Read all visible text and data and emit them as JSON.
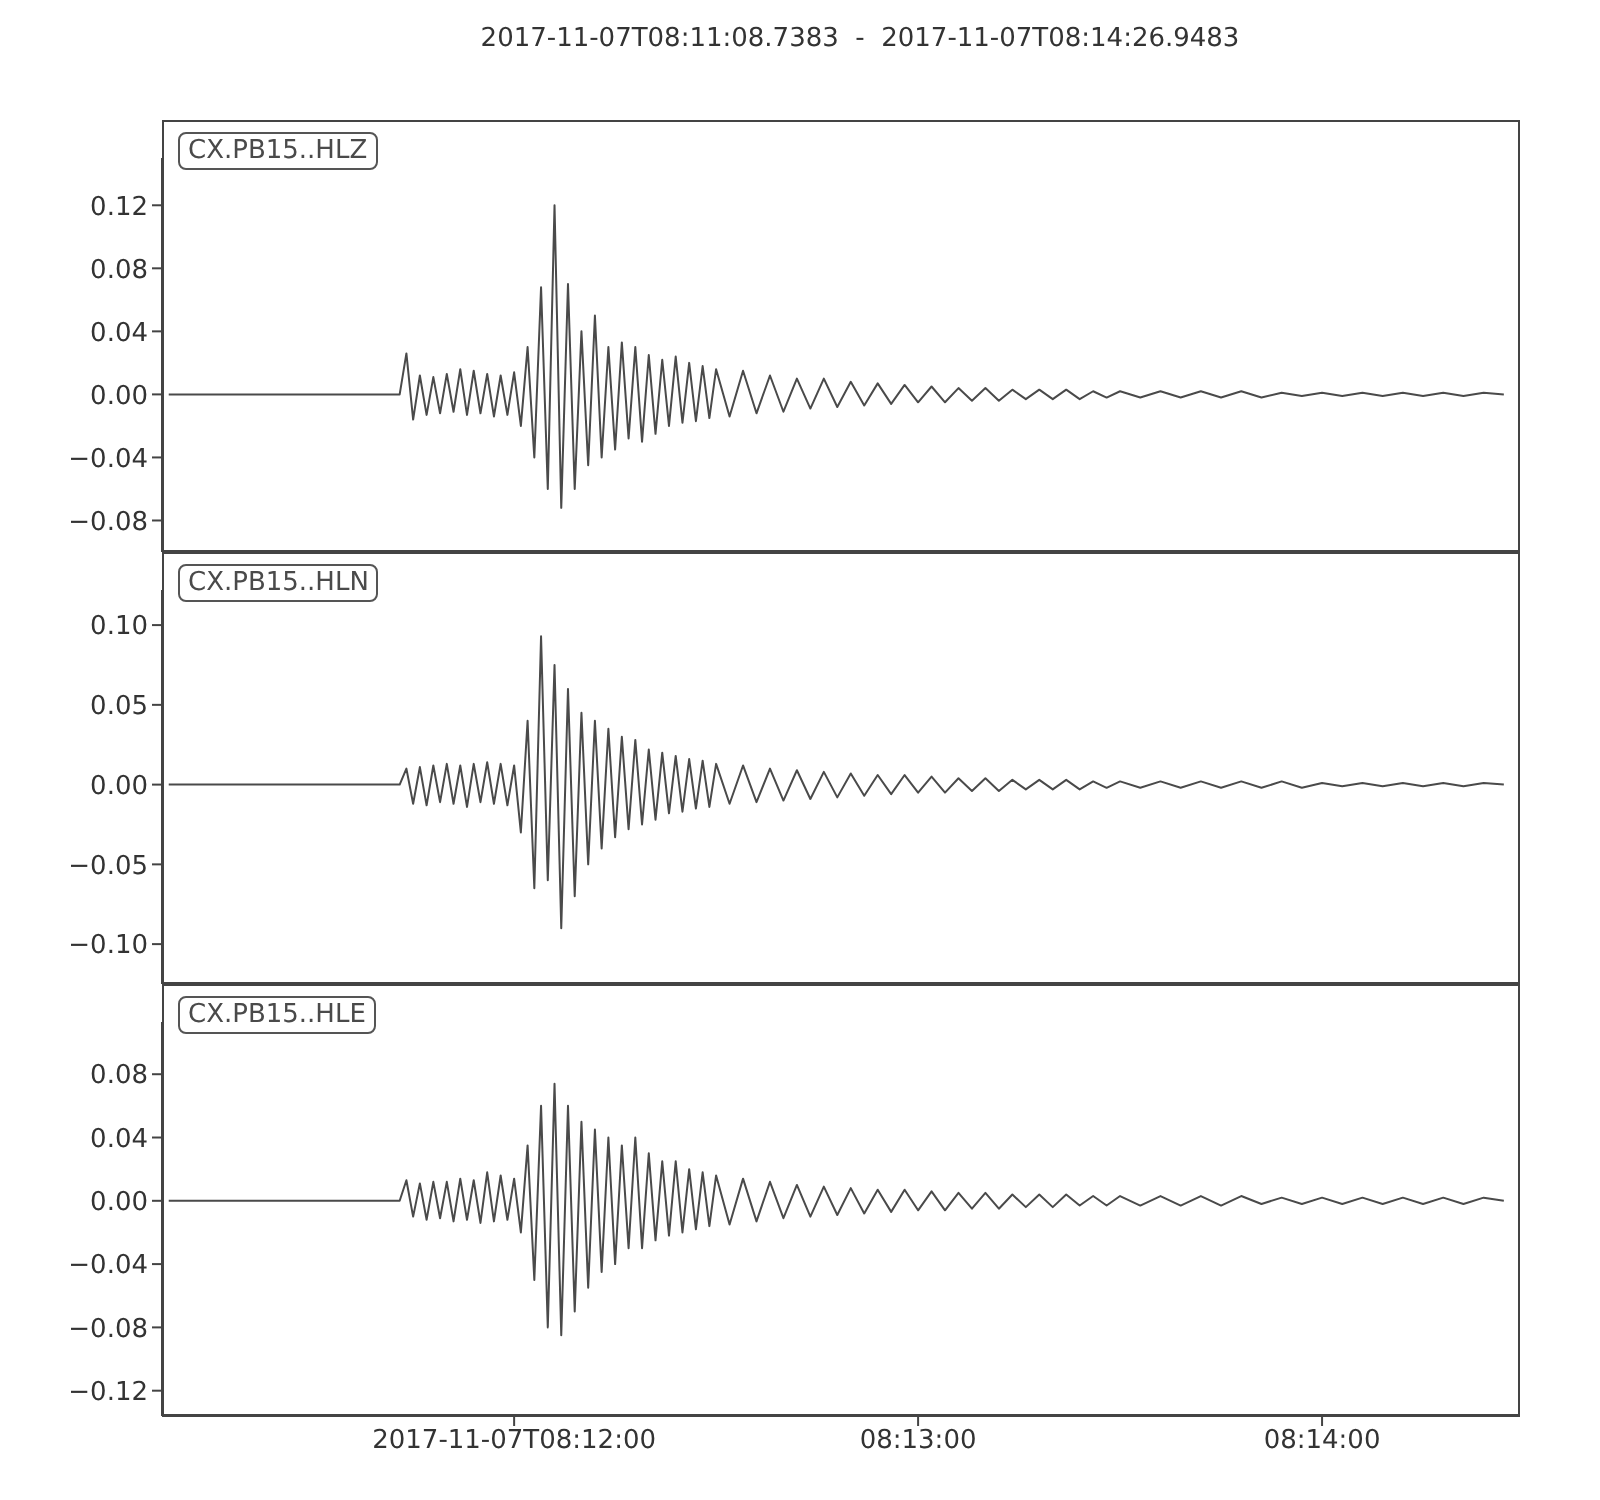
{
  "chart_data": [
    {
      "type": "line",
      "title": "2017-11-07T08:11:08.7383  -  2017-11-07T08:14:26.9483",
      "legend": "top left",
      "tick_labels": "y",
      "x": [
        "2017-11-07T08:11:08.7",
        "2017-11-07T08:11:43",
        "2017-11-07T08:11:44",
        "2017-11-07T08:11:45",
        "2017-11-07T08:11:46",
        "2017-11-07T08:11:47",
        "2017-11-07T08:11:48",
        "2017-11-07T08:11:49",
        "2017-11-07T08:11:50",
        "2017-11-07T08:11:51",
        "2017-11-07T08:11:52",
        "2017-11-07T08:11:53",
        "2017-11-07T08:11:54",
        "2017-11-07T08:11:55",
        "2017-11-07T08:11:56",
        "2017-11-07T08:11:57",
        "2017-11-07T08:11:58",
        "2017-11-07T08:11:59",
        "2017-11-07T08:12:00",
        "2017-11-07T08:12:01",
        "2017-11-07T08:12:02",
        "2017-11-07T08:12:03",
        "2017-11-07T08:12:04",
        "2017-11-07T08:12:05",
        "2017-11-07T08:12:06",
        "2017-11-07T08:12:07",
        "2017-11-07T08:12:08",
        "2017-11-07T08:12:09",
        "2017-11-07T08:12:10",
        "2017-11-07T08:12:11",
        "2017-11-07T08:12:12",
        "2017-11-07T08:12:13",
        "2017-11-07T08:12:14",
        "2017-11-07T08:12:15",
        "2017-11-07T08:12:16",
        "2017-11-07T08:12:17",
        "2017-11-07T08:12:18",
        "2017-11-07T08:12:19",
        "2017-11-07T08:12:20",
        "2017-11-07T08:12:21",
        "2017-11-07T08:12:22",
        "2017-11-07T08:12:23",
        "2017-11-07T08:12:24",
        "2017-11-07T08:12:25",
        "2017-11-07T08:12:26",
        "2017-11-07T08:12:27",
        "2017-11-07T08:12:28",
        "2017-11-07T08:12:29",
        "2017-11-07T08:12:30",
        "2017-11-07T08:12:32",
        "2017-11-07T08:12:34",
        "2017-11-07T08:12:36",
        "2017-11-07T08:12:38",
        "2017-11-07T08:12:40",
        "2017-11-07T08:12:42",
        "2017-11-07T08:12:44",
        "2017-11-07T08:12:46",
        "2017-11-07T08:12:48",
        "2017-11-07T08:12:50",
        "2017-11-07T08:12:52",
        "2017-11-07T08:12:54",
        "2017-11-07T08:12:56",
        "2017-11-07T08:12:58",
        "2017-11-07T08:13:00",
        "2017-11-07T08:13:02",
        "2017-11-07T08:13:04",
        "2017-11-07T08:13:06",
        "2017-11-07T08:13:08",
        "2017-11-07T08:13:10",
        "2017-11-07T08:13:12",
        "2017-11-07T08:13:14",
        "2017-11-07T08:13:16",
        "2017-11-07T08:13:18",
        "2017-11-07T08:13:20",
        "2017-11-07T08:13:22",
        "2017-11-07T08:13:24",
        "2017-11-07T08:13:26",
        "2017-11-07T08:13:28",
        "2017-11-07T08:13:30",
        "2017-11-07T08:13:33",
        "2017-11-07T08:13:36",
        "2017-11-07T08:13:39",
        "2017-11-07T08:13:42",
        "2017-11-07T08:13:45",
        "2017-11-07T08:13:48",
        "2017-11-07T08:13:51",
        "2017-11-07T08:13:54",
        "2017-11-07T08:13:57",
        "2017-11-07T08:14:00",
        "2017-11-07T08:14:03",
        "2017-11-07T08:14:06",
        "2017-11-07T08:14:09",
        "2017-11-07T08:14:12",
        "2017-11-07T08:14:15",
        "2017-11-07T08:14:18",
        "2017-11-07T08:14:21",
        "2017-11-07T08:14:24",
        "2017-11-07T08:14:27"
      ],
      "xlim": [
        "2017-11-07T08:11:07.7",
        "2017-11-07T08:14:29.4"
      ],
      "xticks": [
        {
          "value": "2017-11-07T08:12:00",
          "label": null
        },
        {
          "value": "2017-11-07T08:13:00",
          "label": null
        },
        {
          "value": "2017-11-07T08:14:00",
          "label": null
        }
      ],
      "ylim": [
        -0.1,
        0.15
      ],
      "yticks": [
        {
          "value": -0.08,
          "label": "−0.08"
        },
        {
          "value": -0.04,
          "label": "−0.04"
        },
        {
          "value": 0,
          "label": "0.00"
        },
        {
          "value": 0.04,
          "label": "0.04"
        },
        {
          "value": 0.08,
          "label": "0.08"
        },
        {
          "value": 0.12,
          "label": "0.12"
        }
      ],
      "series": [
        {
          "name": "CX.PB15..HLZ",
          "color": "#4a4a4a",
          "values": [
            0,
            0,
            0.026,
            -0.016,
            0.012,
            -0.013,
            0.011,
            -0.012,
            0.013,
            -0.011,
            0.016,
            -0.013,
            0.015,
            -0.012,
            0.013,
            -0.014,
            0.012,
            -0.013,
            0.014,
            -0.02,
            0.03,
            -0.04,
            0.068,
            -0.06,
            0.12,
            -0.072,
            0.07,
            -0.06,
            0.04,
            -0.045,
            0.05,
            -0.04,
            0.03,
            -0.035,
            0.033,
            -0.028,
            0.03,
            -0.03,
            0.025,
            -0.025,
            0.022,
            -0.02,
            0.024,
            -0.018,
            0.02,
            -0.017,
            0.018,
            -0.015,
            0.016,
            -0.014,
            0.015,
            -0.012,
            0.012,
            -0.011,
            0.01,
            -0.009,
            0.01,
            -0.008,
            0.008,
            -0.007,
            0.007,
            -0.006,
            0.006,
            -0.005,
            0.005,
            -0.005,
            0.004,
            -0.004,
            0.004,
            -0.004,
            0.003,
            -0.003,
            0.003,
            -0.003,
            0.003,
            -0.003,
            0.002,
            -0.002,
            0.002,
            -0.002,
            0.002,
            -0.002,
            0.002,
            -0.002,
            0.002,
            -0.002,
            0.001,
            -0.001,
            0.001,
            -0.001,
            0.001,
            -0.001,
            0.001,
            -0.001,
            0.001,
            -0.001,
            0.001,
            0
          ]
        }
      ]
    },
    {
      "type": "line",
      "legend": "top left",
      "tick_labels": "y",
      "x": [
        "2017-11-07T08:11:08.7",
        "2017-11-07T08:11:43",
        "2017-11-07T08:11:44",
        "2017-11-07T08:11:45",
        "2017-11-07T08:11:46",
        "2017-11-07T08:11:47",
        "2017-11-07T08:11:48",
        "2017-11-07T08:11:49",
        "2017-11-07T08:11:50",
        "2017-11-07T08:11:51",
        "2017-11-07T08:11:52",
        "2017-11-07T08:11:53",
        "2017-11-07T08:11:54",
        "2017-11-07T08:11:55",
        "2017-11-07T08:11:56",
        "2017-11-07T08:11:57",
        "2017-11-07T08:11:58",
        "2017-11-07T08:11:59",
        "2017-11-07T08:12:00",
        "2017-11-07T08:12:01",
        "2017-11-07T08:12:02",
        "2017-11-07T08:12:03",
        "2017-11-07T08:12:04",
        "2017-11-07T08:12:05",
        "2017-11-07T08:12:06",
        "2017-11-07T08:12:07",
        "2017-11-07T08:12:08",
        "2017-11-07T08:12:09",
        "2017-11-07T08:12:10",
        "2017-11-07T08:12:11",
        "2017-11-07T08:12:12",
        "2017-11-07T08:12:13",
        "2017-11-07T08:12:14",
        "2017-11-07T08:12:15",
        "2017-11-07T08:12:16",
        "2017-11-07T08:12:17",
        "2017-11-07T08:12:18",
        "2017-11-07T08:12:19",
        "2017-11-07T08:12:20",
        "2017-11-07T08:12:21",
        "2017-11-07T08:12:22",
        "2017-11-07T08:12:23",
        "2017-11-07T08:12:24",
        "2017-11-07T08:12:25",
        "2017-11-07T08:12:26",
        "2017-11-07T08:12:27",
        "2017-11-07T08:12:28",
        "2017-11-07T08:12:29",
        "2017-11-07T08:12:30",
        "2017-11-07T08:12:32",
        "2017-11-07T08:12:34",
        "2017-11-07T08:12:36",
        "2017-11-07T08:12:38",
        "2017-11-07T08:12:40",
        "2017-11-07T08:12:42",
        "2017-11-07T08:12:44",
        "2017-11-07T08:12:46",
        "2017-11-07T08:12:48",
        "2017-11-07T08:12:50",
        "2017-11-07T08:12:52",
        "2017-11-07T08:12:54",
        "2017-11-07T08:12:56",
        "2017-11-07T08:12:58",
        "2017-11-07T08:13:00",
        "2017-11-07T08:13:02",
        "2017-11-07T08:13:04",
        "2017-11-07T08:13:06",
        "2017-11-07T08:13:08",
        "2017-11-07T08:13:10",
        "2017-11-07T08:13:12",
        "2017-11-07T08:13:14",
        "2017-11-07T08:13:16",
        "2017-11-07T08:13:18",
        "2017-11-07T08:13:20",
        "2017-11-07T08:13:22",
        "2017-11-07T08:13:24",
        "2017-11-07T08:13:26",
        "2017-11-07T08:13:28",
        "2017-11-07T08:13:30",
        "2017-11-07T08:13:33",
        "2017-11-07T08:13:36",
        "2017-11-07T08:13:39",
        "2017-11-07T08:13:42",
        "2017-11-07T08:13:45",
        "2017-11-07T08:13:48",
        "2017-11-07T08:13:51",
        "2017-11-07T08:13:54",
        "2017-11-07T08:13:57",
        "2017-11-07T08:14:00",
        "2017-11-07T08:14:03",
        "2017-11-07T08:14:06",
        "2017-11-07T08:14:09",
        "2017-11-07T08:14:12",
        "2017-11-07T08:14:15",
        "2017-11-07T08:14:18",
        "2017-11-07T08:14:21",
        "2017-11-07T08:14:24",
        "2017-11-07T08:14:27"
      ],
      "xlim": [
        "2017-11-07T08:11:07.7",
        "2017-11-07T08:14:29.4"
      ],
      "xticks": [
        {
          "value": "2017-11-07T08:12:00",
          "label": null
        },
        {
          "value": "2017-11-07T08:13:00",
          "label": null
        },
        {
          "value": "2017-11-07T08:14:00",
          "label": null
        }
      ],
      "ylim": [
        -0.125,
        0.122
      ],
      "yticks": [
        {
          "value": -0.1,
          "label": "−0.10"
        },
        {
          "value": -0.05,
          "label": "−0.05"
        },
        {
          "value": 0,
          "label": "0.00"
        },
        {
          "value": 0.05,
          "label": "0.05"
        },
        {
          "value": 0.1,
          "label": "0.10"
        }
      ],
      "series": [
        {
          "name": "CX.PB15..HLN",
          "color": "#4a4a4a",
          "values": [
            0,
            0,
            0.01,
            -0.012,
            0.011,
            -0.013,
            0.012,
            -0.011,
            0.013,
            -0.012,
            0.012,
            -0.014,
            0.013,
            -0.011,
            0.014,
            -0.012,
            0.013,
            -0.013,
            0.012,
            -0.03,
            0.04,
            -0.065,
            0.093,
            -0.06,
            0.075,
            -0.09,
            0.06,
            -0.07,
            0.045,
            -0.05,
            0.04,
            -0.04,
            0.035,
            -0.033,
            0.03,
            -0.028,
            0.028,
            -0.025,
            0.022,
            -0.022,
            0.02,
            -0.018,
            0.018,
            -0.017,
            0.016,
            -0.015,
            0.015,
            -0.014,
            0.013,
            -0.012,
            0.012,
            -0.011,
            0.01,
            -0.01,
            0.009,
            -0.009,
            0.008,
            -0.008,
            0.007,
            -0.007,
            0.006,
            -0.006,
            0.006,
            -0.005,
            0.005,
            -0.005,
            0.004,
            -0.004,
            0.004,
            -0.004,
            0.003,
            -0.003,
            0.003,
            -0.003,
            0.003,
            -0.003,
            0.002,
            -0.002,
            0.002,
            -0.002,
            0.002,
            -0.002,
            0.002,
            -0.002,
            0.002,
            -0.002,
            0.002,
            -0.002,
            0.001,
            -0.001,
            0.001,
            -0.001,
            0.001,
            -0.001,
            0.001,
            -0.001,
            0.001,
            0
          ]
        }
      ]
    },
    {
      "type": "line",
      "legend": "top left",
      "x": [
        "2017-11-07T08:11:08.7",
        "2017-11-07T08:11:43",
        "2017-11-07T08:11:44",
        "2017-11-07T08:11:45",
        "2017-11-07T08:11:46",
        "2017-11-07T08:11:47",
        "2017-11-07T08:11:48",
        "2017-11-07T08:11:49",
        "2017-11-07T08:11:50",
        "2017-11-07T08:11:51",
        "2017-11-07T08:11:52",
        "2017-11-07T08:11:53",
        "2017-11-07T08:11:54",
        "2017-11-07T08:11:55",
        "2017-11-07T08:11:56",
        "2017-11-07T08:11:57",
        "2017-11-07T08:11:58",
        "2017-11-07T08:11:59",
        "2017-11-07T08:12:00",
        "2017-11-07T08:12:01",
        "2017-11-07T08:12:02",
        "2017-11-07T08:12:03",
        "2017-11-07T08:12:04",
        "2017-11-07T08:12:05",
        "2017-11-07T08:12:06",
        "2017-11-07T08:12:07",
        "2017-11-07T08:12:08",
        "2017-11-07T08:12:09",
        "2017-11-07T08:12:10",
        "2017-11-07T08:12:11",
        "2017-11-07T08:12:12",
        "2017-11-07T08:12:13",
        "2017-11-07T08:12:14",
        "2017-11-07T08:12:15",
        "2017-11-07T08:12:16",
        "2017-11-07T08:12:17",
        "2017-11-07T08:12:18",
        "2017-11-07T08:12:19",
        "2017-11-07T08:12:20",
        "2017-11-07T08:12:21",
        "2017-11-07T08:12:22",
        "2017-11-07T08:12:23",
        "2017-11-07T08:12:24",
        "2017-11-07T08:12:25",
        "2017-11-07T08:12:26",
        "2017-11-07T08:12:27",
        "2017-11-07T08:12:28",
        "2017-11-07T08:12:29",
        "2017-11-07T08:12:30",
        "2017-11-07T08:12:32",
        "2017-11-07T08:12:34",
        "2017-11-07T08:12:36",
        "2017-11-07T08:12:38",
        "2017-11-07T08:12:40",
        "2017-11-07T08:12:42",
        "2017-11-07T08:12:44",
        "2017-11-07T08:12:46",
        "2017-11-07T08:12:48",
        "2017-11-07T08:12:50",
        "2017-11-07T08:12:52",
        "2017-11-07T08:12:54",
        "2017-11-07T08:12:56",
        "2017-11-07T08:12:58",
        "2017-11-07T08:13:00",
        "2017-11-07T08:13:02",
        "2017-11-07T08:13:04",
        "2017-11-07T08:13:06",
        "2017-11-07T08:13:08",
        "2017-11-07T08:13:10",
        "2017-11-07T08:13:12",
        "2017-11-07T08:13:14",
        "2017-11-07T08:13:16",
        "2017-11-07T08:13:18",
        "2017-11-07T08:13:20",
        "2017-11-07T08:13:22",
        "2017-11-07T08:13:24",
        "2017-11-07T08:13:26",
        "2017-11-07T08:13:28",
        "2017-11-07T08:13:30",
        "2017-11-07T08:13:33",
        "2017-11-07T08:13:36",
        "2017-11-07T08:13:39",
        "2017-11-07T08:13:42",
        "2017-11-07T08:13:45",
        "2017-11-07T08:13:48",
        "2017-11-07T08:13:51",
        "2017-11-07T08:13:54",
        "2017-11-07T08:13:57",
        "2017-11-07T08:14:00",
        "2017-11-07T08:14:03",
        "2017-11-07T08:14:06",
        "2017-11-07T08:14:09",
        "2017-11-07T08:14:12",
        "2017-11-07T08:14:15",
        "2017-11-07T08:14:18",
        "2017-11-07T08:14:21",
        "2017-11-07T08:14:24",
        "2017-11-07T08:14:27"
      ],
      "xlim": [
        "2017-11-07T08:11:07.7",
        "2017-11-07T08:14:29.4"
      ],
      "xticks": [
        {
          "value": "2017-11-07T08:12:00",
          "label": "2017-11-07T08:12:00"
        },
        {
          "value": "2017-11-07T08:13:00",
          "label": "08:13:00"
        },
        {
          "value": "2017-11-07T08:14:00",
          "label": "08:14:00"
        }
      ],
      "ylim": [
        -0.136,
        0.113
      ],
      "yticks": [
        {
          "value": -0.12,
          "label": "−0.12"
        },
        {
          "value": -0.08,
          "label": "−0.08"
        },
        {
          "value": -0.04,
          "label": "−0.04"
        },
        {
          "value": 0,
          "label": "0.00"
        },
        {
          "value": 0.04,
          "label": "0.04"
        },
        {
          "value": 0.08,
          "label": "0.08"
        }
      ],
      "series": [
        {
          "name": "CX.PB15..HLE",
          "color": "#4a4a4a",
          "values": [
            0,
            0,
            0.013,
            -0.01,
            0.011,
            -0.012,
            0.012,
            -0.011,
            0.012,
            -0.013,
            0.014,
            -0.012,
            0.013,
            -0.014,
            0.018,
            -0.013,
            0.016,
            -0.012,
            0.014,
            -0.02,
            0.035,
            -0.05,
            0.06,
            -0.08,
            0.074,
            -0.085,
            0.06,
            -0.07,
            0.05,
            -0.055,
            0.045,
            -0.045,
            0.04,
            -0.04,
            0.035,
            -0.03,
            0.04,
            -0.03,
            0.03,
            -0.025,
            0.025,
            -0.022,
            0.025,
            -0.02,
            0.02,
            -0.018,
            0.018,
            -0.016,
            0.016,
            -0.015,
            0.014,
            -0.013,
            0.012,
            -0.011,
            0.01,
            -0.01,
            0.009,
            -0.009,
            0.008,
            -0.008,
            0.007,
            -0.007,
            0.007,
            -0.006,
            0.006,
            -0.006,
            0.005,
            -0.005,
            0.005,
            -0.005,
            0.004,
            -0.004,
            0.004,
            -0.004,
            0.004,
            -0.003,
            0.003,
            -0.003,
            0.003,
            -0.003,
            0.003,
            -0.003,
            0.003,
            -0.003,
            0.003,
            -0.002,
            0.002,
            -0.002,
            0.002,
            -0.002,
            0.002,
            -0.002,
            0.002,
            -0.002,
            0.002,
            -0.002,
            0.002,
            0
          ]
        }
      ]
    }
  ]
}
